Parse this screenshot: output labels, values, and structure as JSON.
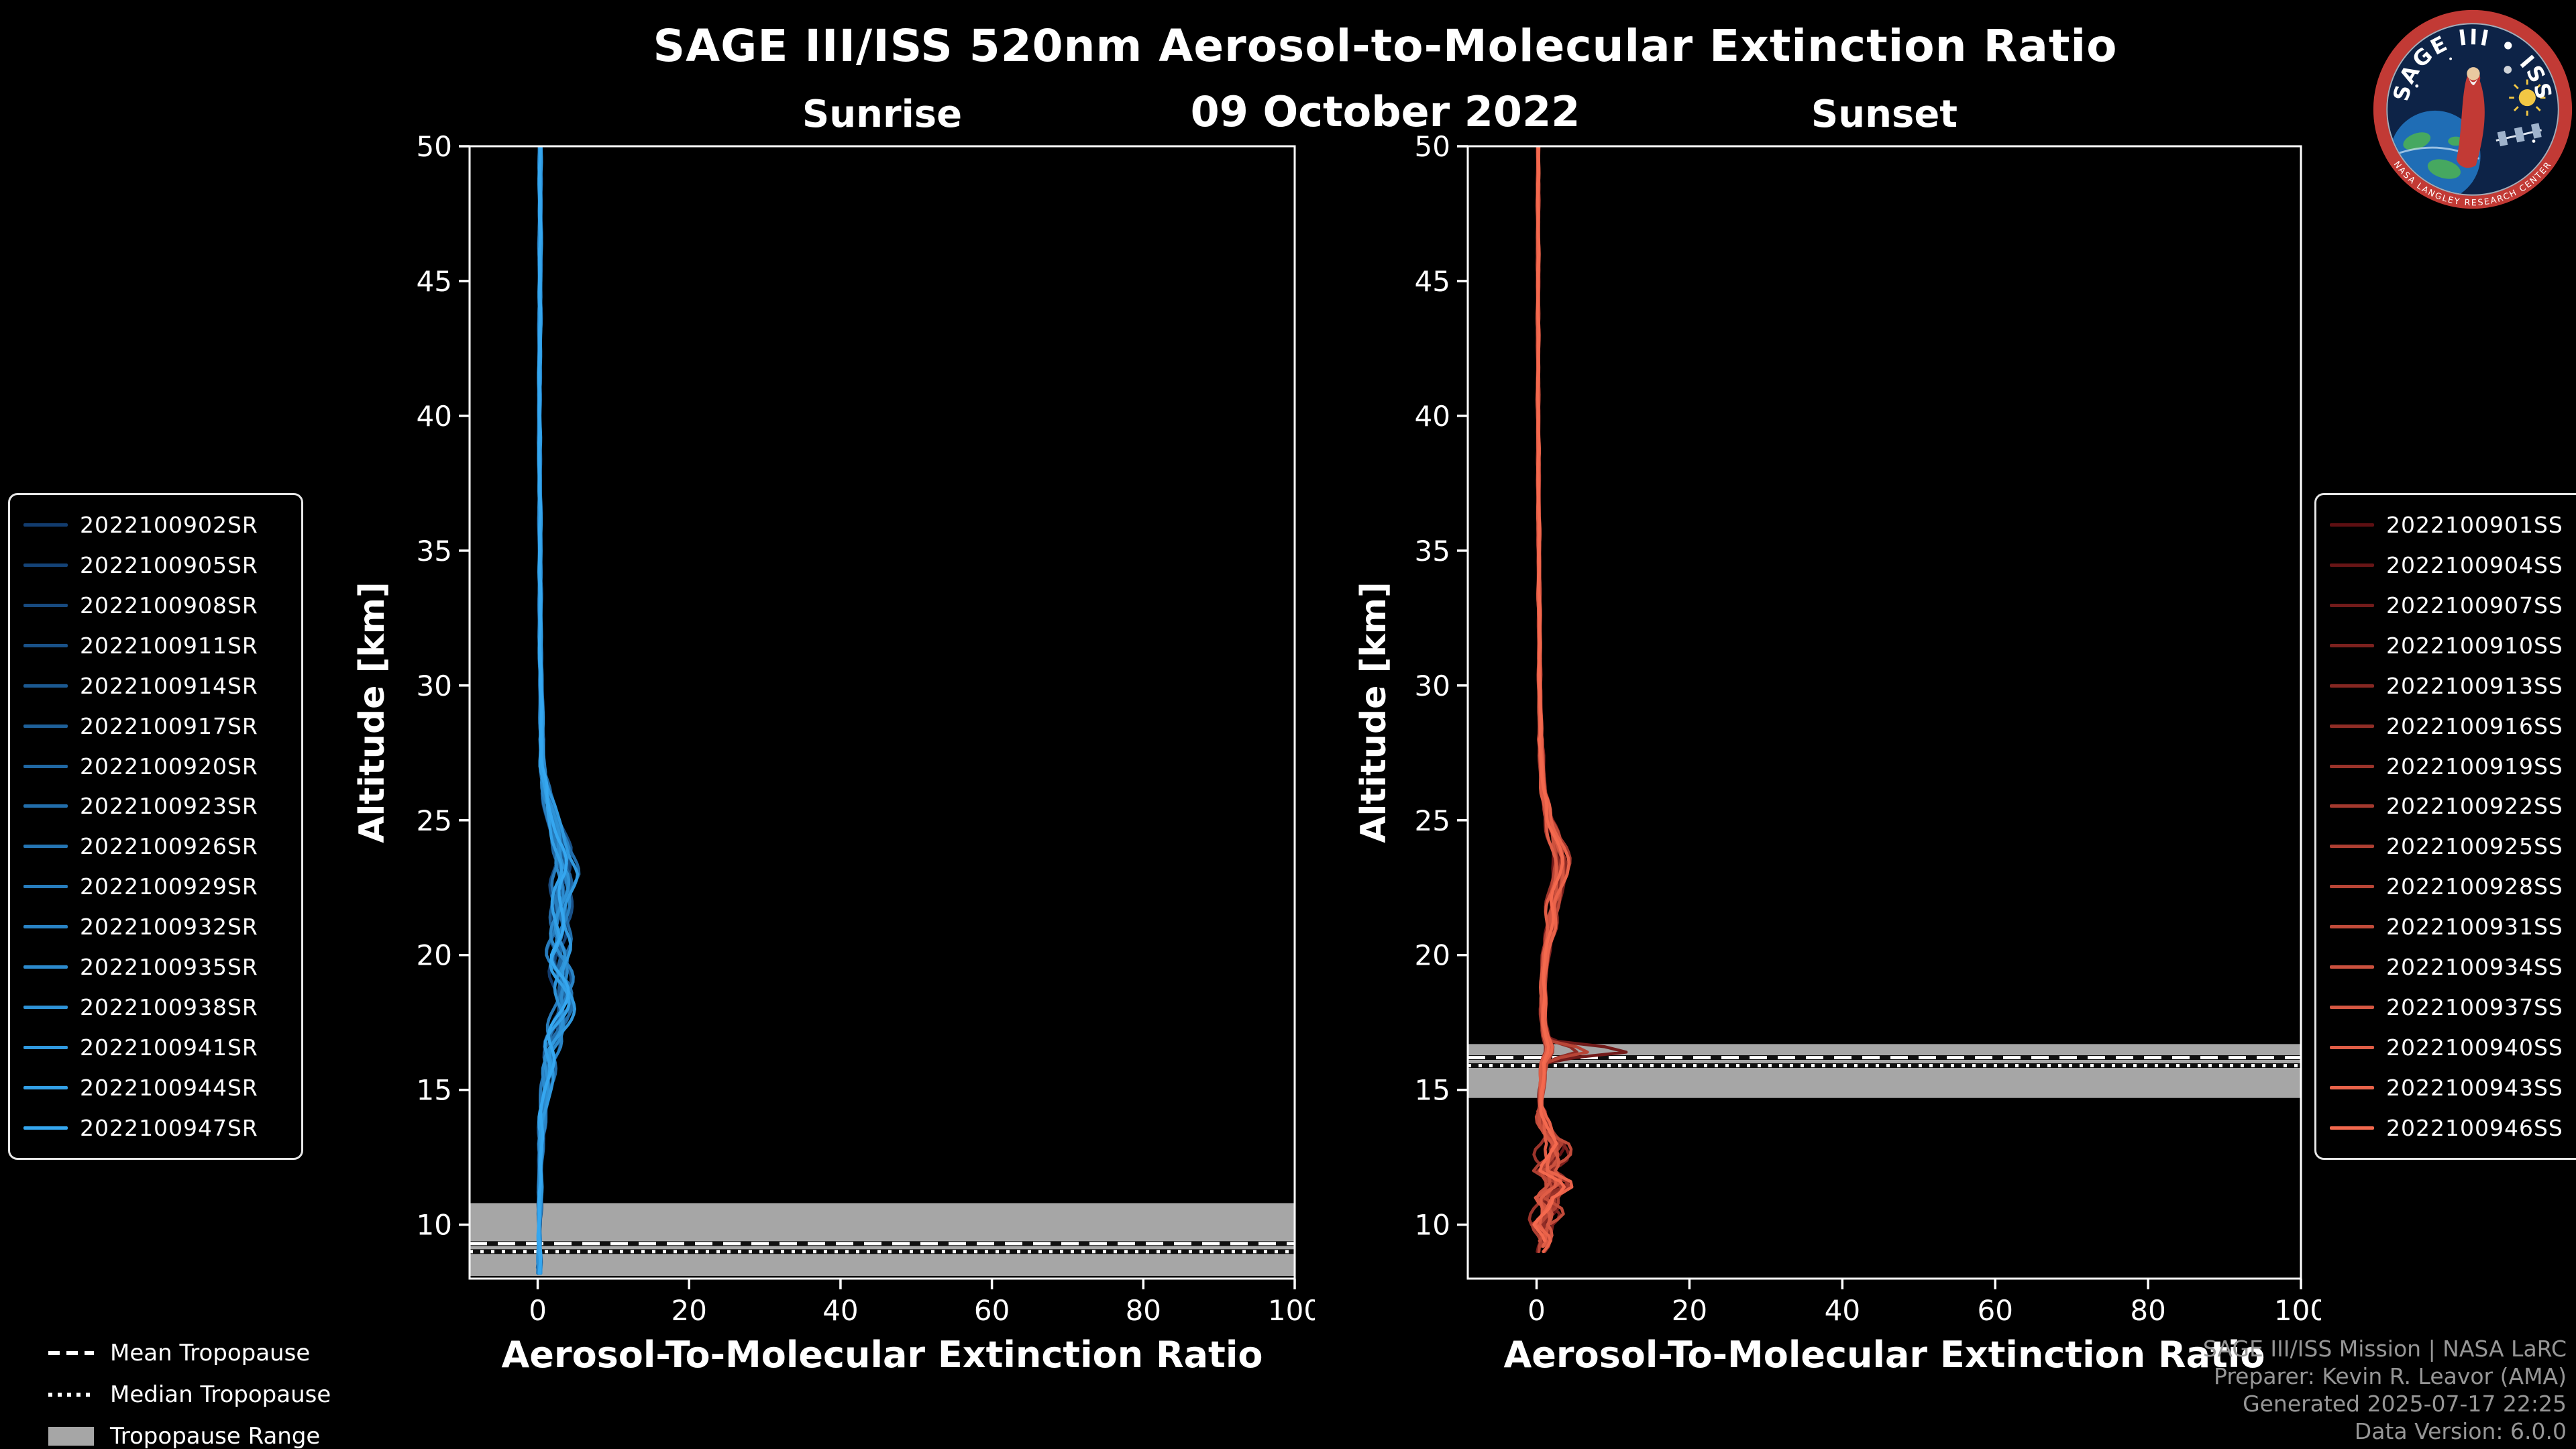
{
  "header": {
    "title": "SAGE III/ISS 520nm Aerosol-to-Molecular Extinction Ratio",
    "date": "09 October 2022"
  },
  "logo": {
    "arc_text": "SAGE III • ISS",
    "bottom_text": "NASA LANGLEY RESEARCH CENTER"
  },
  "tropopause_legend": {
    "mean_label": "Mean Tropopause",
    "median_label": "Median Tropopause",
    "range_label": "Tropopause Range"
  },
  "credits": {
    "line1": "SAGE III/ISS Mission | NASA LaRC",
    "line2": "Preparer: Kevin R. Leavor (AMA)",
    "line3": "Generated 2025-07-17 22:25",
    "line4": "Data Version: 6.0.0"
  },
  "chart_data": [
    {
      "type": "line",
      "title": "Sunrise",
      "xlabel": "Aerosol-To-Molecular Extinction Ratio",
      "ylabel": "Altitude [km]",
      "xlim": [
        -9,
        100
      ],
      "ylim": [
        8,
        50
      ],
      "xticks": [
        0,
        20,
        40,
        60,
        80,
        100
      ],
      "yticks": [
        10,
        15,
        20,
        25,
        30,
        35,
        40,
        45,
        50
      ],
      "grid": false,
      "legend_side": "left-outside",
      "line_color_ramp": [
        "#123c6e",
        "#35a7f0"
      ],
      "tropopause": {
        "mean": 9.3,
        "median": 9.0,
        "range": [
          8.1,
          10.8
        ]
      },
      "base_profile": {
        "alt": [
          8,
          9,
          10,
          11,
          12,
          13,
          14,
          15,
          16,
          17,
          18,
          19,
          20,
          21,
          22,
          23,
          24,
          25,
          26,
          27,
          28,
          30,
          32,
          35,
          40,
          45,
          50
        ],
        "value": [
          0.2,
          0.2,
          0.2,
          0.3,
          0.3,
          0.4,
          0.6,
          1.0,
          1.4,
          1.8,
          2.4,
          2.6,
          2.4,
          2.6,
          3.0,
          3.4,
          3.0,
          2.0,
          1.0,
          0.6,
          0.5,
          0.4,
          0.3,
          0.3,
          0.2,
          0.3,
          0.3
        ]
      },
      "series": [
        {
          "name": "2022100902SR",
          "color": "#123c6e",
          "amp": 0.85,
          "seed": 3,
          "bump18": 0.3,
          "min_alt": 8.2
        },
        {
          "name": "2022100905SR",
          "color": "#144377",
          "amp": 1.15,
          "seed": 7,
          "bump18": 0.8,
          "min_alt": 8.1
        },
        {
          "name": "2022100908SR",
          "color": "#174a7f",
          "amp": 0.7,
          "seed": 11,
          "bump18": 1.6,
          "min_alt": 8.25
        },
        {
          "name": "2022100911SR",
          "color": "#195188",
          "amp": 1.35,
          "seed": 15,
          "bump18": 0.2,
          "min_alt": 8.1
        },
        {
          "name": "2022100914SR",
          "color": "#1b5991",
          "amp": 0.95,
          "seed": 19,
          "bump18": 1.1,
          "min_alt": 8.2
        },
        {
          "name": "2022100917SR",
          "color": "#1e6099",
          "amp": 1.2,
          "seed": 23,
          "bump18": 0.5,
          "min_alt": 8.15
        },
        {
          "name": "2022100920SR",
          "color": "#2067a2",
          "amp": 0.8,
          "seed": 27,
          "bump18": 1.9,
          "min_alt": 8.2
        },
        {
          "name": "2022100923SR",
          "color": "#226eab",
          "amp": 1.45,
          "seed": 31,
          "bump18": 0.4,
          "min_alt": 8.1
        },
        {
          "name": "2022100926SR",
          "color": "#2575b3",
          "amp": 1.0,
          "seed": 35,
          "bump18": 1.3,
          "min_alt": 8.2
        },
        {
          "name": "2022100929SR",
          "color": "#277cbc",
          "amp": 0.75,
          "seed": 39,
          "bump18": 0.7,
          "min_alt": 8.15
        },
        {
          "name": "2022100932SR",
          "color": "#2983c5",
          "amp": 1.25,
          "seed": 43,
          "bump18": 1.0,
          "min_alt": 8.2
        },
        {
          "name": "2022100935SR",
          "color": "#2c8acd",
          "amp": 0.9,
          "seed": 47,
          "bump18": 1.7,
          "min_alt": 8.1
        },
        {
          "name": "2022100938SR",
          "color": "#2e92d6",
          "amp": 1.1,
          "seed": 51,
          "bump18": 0.3,
          "min_alt": 8.2
        },
        {
          "name": "2022100941SR",
          "color": "#3099df",
          "amp": 1.4,
          "seed": 55,
          "bump18": 0.9,
          "min_alt": 8.15
        },
        {
          "name": "2022100944SR",
          "color": "#33a0e7",
          "amp": 0.8,
          "seed": 59,
          "bump18": 1.4,
          "min_alt": 8.2
        },
        {
          "name": "2022100947SR",
          "color": "#35a7f0",
          "amp": 1.05,
          "seed": 63,
          "bump18": 0.6,
          "min_alt": 8.1
        }
      ]
    },
    {
      "type": "line",
      "title": "Sunset",
      "xlabel": "Aerosol-To-Molecular Extinction Ratio",
      "ylabel": "Altitude [km]",
      "xlim": [
        -9,
        100
      ],
      "ylim": [
        8,
        50
      ],
      "xticks": [
        0,
        20,
        40,
        60,
        80,
        100
      ],
      "yticks": [
        10,
        15,
        20,
        25,
        30,
        35,
        40,
        45,
        50
      ],
      "grid": false,
      "legend_side": "right-outside",
      "line_color_ramp": [
        "#5e0f12",
        "#f4694e"
      ],
      "tropopause": {
        "mean": 16.2,
        "median": 15.9,
        "range": [
          14.7,
          16.7
        ]
      },
      "base_profile": {
        "alt": [
          9,
          9.5,
          10,
          10.5,
          11,
          11.5,
          12,
          12.5,
          13,
          13.5,
          14,
          14.5,
          15,
          15.5,
          16,
          16.5,
          17,
          17.5,
          18,
          19,
          20,
          21,
          22,
          23,
          23.5,
          24,
          25,
          26,
          28,
          30,
          35,
          40,
          45,
          50
        ],
        "value": [
          0.4,
          1.2,
          0.5,
          1.8,
          1.2,
          3.0,
          1.0,
          2.2,
          2.6,
          1.2,
          0.6,
          0.5,
          0.6,
          0.8,
          1.0,
          1.8,
          1.2,
          0.9,
          0.8,
          0.9,
          1.2,
          1.8,
          2.2,
          3.0,
          3.2,
          2.8,
          1.6,
          0.9,
          0.5,
          0.4,
          0.3,
          0.2,
          0.2,
          0.2
        ]
      },
      "series": [
        {
          "name": "2022100901SS",
          "color": "#5e0f12",
          "amp": 0.9,
          "seed": 4,
          "spike": 0,
          "wiggle": 0.6,
          "min_alt": 9.4
        },
        {
          "name": "2022100904SS",
          "color": "#681516",
          "amp": 1.1,
          "seed": 8,
          "spike": 0,
          "wiggle": 1.2,
          "min_alt": 9.2
        },
        {
          "name": "2022100907SS",
          "color": "#721b1a",
          "amp": 0.8,
          "seed": 12,
          "spike": 10.8,
          "wiggle": 0.8,
          "min_alt": 9.0
        },
        {
          "name": "2022100910SS",
          "color": "#7c211e",
          "amp": 1.25,
          "seed": 16,
          "spike": 0,
          "wiggle": 1.8,
          "min_alt": 9.3
        },
        {
          "name": "2022100913SS",
          "color": "#862722",
          "amp": 0.95,
          "seed": 20,
          "spike": 0,
          "wiggle": 0.5,
          "min_alt": 9.5
        },
        {
          "name": "2022100916SS",
          "color": "#902d26",
          "amp": 1.15,
          "seed": 24,
          "spike": 3.5,
          "wiggle": 1.4,
          "min_alt": 9.1
        },
        {
          "name": "2022100919SS",
          "color": "#9a332a",
          "amp": 0.7,
          "seed": 28,
          "spike": 0,
          "wiggle": 2.3,
          "min_alt": 9.0
        },
        {
          "name": "2022100922SS",
          "color": "#a4392e",
          "amp": 1.3,
          "seed": 32,
          "spike": 0,
          "wiggle": 0.9,
          "min_alt": 9.4
        },
        {
          "name": "2022100925SS",
          "color": "#ae3f32",
          "amp": 1.0,
          "seed": 36,
          "spike": 0,
          "wiggle": 1.6,
          "min_alt": 9.2
        },
        {
          "name": "2022100928SS",
          "color": "#b84536",
          "amp": 0.85,
          "seed": 40,
          "spike": 5.5,
          "wiggle": 0.7,
          "min_alt": 9.0
        },
        {
          "name": "2022100931SS",
          "color": "#c24b3a",
          "amp": 1.2,
          "seed": 44,
          "spike": 0,
          "wiggle": 2.0,
          "min_alt": 9.3
        },
        {
          "name": "2022100934SS",
          "color": "#cc513e",
          "amp": 0.9,
          "seed": 48,
          "spike": 0,
          "wiggle": 1.1,
          "min_alt": 9.5
        },
        {
          "name": "2022100937SS",
          "color": "#d65742",
          "amp": 1.1,
          "seed": 52,
          "spike": 0,
          "wiggle": 1.5,
          "min_alt": 9.1
        },
        {
          "name": "2022100940SS",
          "color": "#e05d46",
          "amp": 0.75,
          "seed": 56,
          "spike": 0,
          "wiggle": 0.8,
          "min_alt": 9.2
        },
        {
          "name": "2022100943SS",
          "color": "#ea634a",
          "amp": 1.25,
          "seed": 60,
          "spike": 0,
          "wiggle": 1.3,
          "min_alt": 9.0
        },
        {
          "name": "2022100946SS",
          "color": "#f4694e",
          "amp": 1.0,
          "seed": 64,
          "spike": 0,
          "wiggle": 1.0,
          "min_alt": 9.3
        }
      ]
    }
  ]
}
